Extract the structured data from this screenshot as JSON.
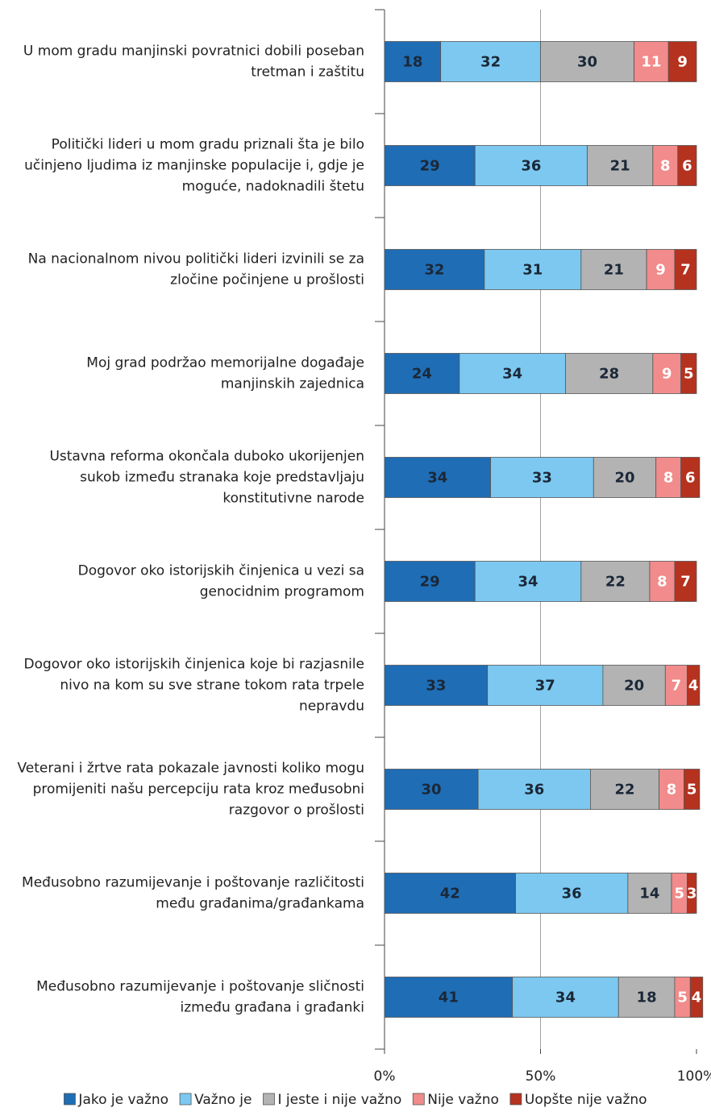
{
  "chart_data": {
    "type": "bar",
    "orientation": "horizontal",
    "stacked": true,
    "categories": [
      "U mom gradu manjinski povratnici dobili poseban tretman i zaštitu",
      "Politički lideri u mom gradu priznali šta je bilo učinjeno ljudima iz manjinske populacije i, gdje je moguće, nadoknadili štetu",
      "Na nacionalnom nivou politički lideri izvinili se za zločine počinjene u prošlosti",
      "Moj grad podržao memorijalne događaje manjinskih zajednica",
      "Ustavna reforma okončala duboko ukorijenjen sukob između stranaka koje predstavljaju konstitutivne narode",
      "Dogovor oko istorijskih činjenica u vezi sa genocidnim programom",
      "Dogovor oko istorijskih činjenica koje bi razjasnile nivo na kom su sve strane tokom rata trpele nepravdu",
      "Veterani i žrtve rata pokazale javnosti koliko mogu promijeniti našu percepciju rata kroz međusobni razgovor o prošlosti",
      "Međusobno razumijevanje i poštovanje različitosti među građanima/građankama",
      "Međusobno razumijevanje i poštovanje sličnosti između građana i građanki"
    ],
    "series": [
      {
        "name": "Jako je važno",
        "color": "#1f6db5",
        "label_color": "#1b2838",
        "values": [
          18,
          29,
          32,
          24,
          34,
          29,
          33,
          30,
          42,
          41
        ]
      },
      {
        "name": "Važno je",
        "color": "#7cc8f0",
        "label_color": "#1b2838",
        "values": [
          32,
          36,
          31,
          34,
          33,
          34,
          37,
          36,
          36,
          34
        ]
      },
      {
        "name": "I jeste i nije važno",
        "color": "#b3b3b3",
        "label_color": "#1b2838",
        "values": [
          30,
          21,
          21,
          28,
          20,
          22,
          20,
          22,
          14,
          18
        ]
      },
      {
        "name": "Nije važno",
        "color": "#f28b8b",
        "label_color": "#ffffff",
        "values": [
          11,
          8,
          9,
          9,
          8,
          8,
          7,
          8,
          5,
          5
        ]
      },
      {
        "name": "Uopšte nije važno",
        "color": "#b5321f",
        "label_color": "#ffffff",
        "values": [
          9,
          6,
          7,
          5,
          6,
          7,
          4,
          5,
          3,
          4
        ]
      }
    ],
    "xlim": [
      0,
      100
    ],
    "xticks": [
      {
        "value": 0,
        "label": "0%"
      },
      {
        "value": 50,
        "label": "50%"
      },
      {
        "value": 100,
        "label": "100%"
      }
    ],
    "grid": true,
    "legend": "bottom"
  }
}
